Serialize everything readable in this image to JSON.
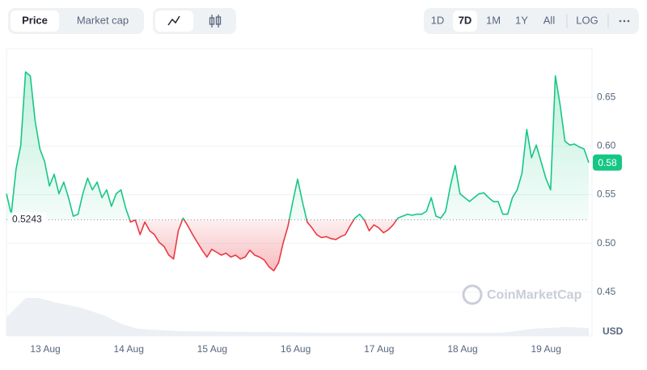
{
  "controls": {
    "tabs": [
      "Price",
      "Market cap"
    ],
    "selected_tab": 0,
    "ranges": [
      "1D",
      "7D",
      "1M",
      "1Y",
      "All"
    ],
    "selected_range": 1,
    "log": "LOG"
  },
  "chart_data": {
    "type": "line",
    "series": [
      {
        "name": "Price",
        "values": [
          0.551,
          0.53,
          0.576,
          0.601,
          0.676,
          0.672,
          0.626,
          0.597,
          0.584,
          0.559,
          0.571,
          0.551,
          0.563,
          0.547,
          0.528,
          0.53,
          0.551,
          0.567,
          0.555,
          0.563,
          0.547,
          0.555,
          0.538,
          0.551,
          0.555,
          0.536,
          0.522,
          0.524,
          0.509,
          0.522,
          0.513,
          0.509,
          0.501,
          0.497,
          0.488,
          0.484,
          0.513,
          0.526,
          0.518,
          0.509,
          0.501,
          0.493,
          0.486,
          0.494,
          0.491,
          0.488,
          0.49,
          0.486,
          0.488,
          0.484,
          0.486,
          0.493,
          0.488,
          0.486,
          0.483,
          0.476,
          0.472,
          0.48,
          0.501,
          0.518,
          0.543,
          0.566,
          0.543,
          0.522,
          0.516,
          0.509,
          0.506,
          0.507,
          0.505,
          0.504,
          0.507,
          0.509,
          0.518,
          0.526,
          0.53,
          0.524,
          0.513,
          0.519,
          0.516,
          0.511,
          0.514,
          0.519,
          0.526,
          0.528,
          0.53,
          0.529,
          0.53,
          0.53,
          0.533,
          0.547,
          0.528,
          0.526,
          0.533,
          0.559,
          0.58,
          0.551,
          0.547,
          0.543,
          0.547,
          0.551,
          0.552,
          0.547,
          0.543,
          0.543,
          0.53,
          0.53,
          0.547,
          0.555,
          0.572,
          0.617,
          0.588,
          0.601,
          0.584,
          0.567,
          0.555,
          0.672,
          0.642,
          0.605,
          0.601,
          0.602,
          0.599,
          0.597,
          0.583
        ]
      }
    ],
    "up_color": "#16c784",
    "down_color": "#ea3943",
    "baseline": 0.5243,
    "current_label": "0.58",
    "x_tick_labels": [
      "13 Aug",
      "14 Aug",
      "15 Aug",
      "16 Aug",
      "17 Aug",
      "18 Aug",
      "19 Aug"
    ],
    "ylim": [
      0.405,
      0.7
    ],
    "yticks": [
      0.45,
      {
        "value": 0.5,
        "label": "0.50"
      },
      0.55,
      {
        "value": 0.6,
        "label": "0.60"
      },
      0.65
    ],
    "y_axis_label": "USD",
    "watermark": "CoinMarketCap",
    "grid": true
  }
}
